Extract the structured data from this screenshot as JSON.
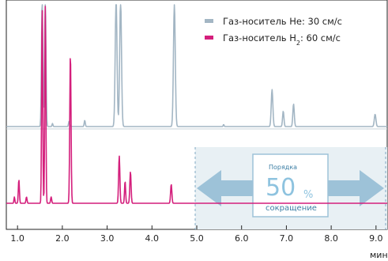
{
  "chart_data": {
    "type": "line",
    "xlabel": "мин",
    "xlim": [
      0.75,
      9.25
    ],
    "x_ticks": [
      {
        "value": 1.0,
        "label": "1.0"
      },
      {
        "value": 2.0,
        "label": "2.0"
      },
      {
        "value": 3.0,
        "label": "3.0"
      },
      {
        "value": 4.0,
        "label": "4.0"
      },
      {
        "value": 5.0,
        "label": "5.0"
      },
      {
        "value": 6.0,
        "label": "6.0"
      },
      {
        "value": 7.0,
        "label": "7.0"
      },
      {
        "value": 8.0,
        "label": "8.0"
      },
      {
        "value": 9.0,
        "label": "9.0"
      }
    ],
    "grid": false,
    "legend_position": "top-right",
    "series": [
      {
        "name": "Газ-носитель He: 30 см/с",
        "legend_prefix": "Газ-носитель H",
        "legend_sub": "",
        "legend_suffix": "e: 30 см/с",
        "color": "#a3b6c4",
        "baseline": 0,
        "peaks": [
          {
            "t": 1.55,
            "h": 125,
            "w": 0.015
          },
          {
            "t": 1.62,
            "h": 125,
            "w": 0.015
          },
          {
            "t": 1.78,
            "h": 3,
            "w": 0.01
          },
          {
            "t": 2.15,
            "h": 5,
            "w": 0.012
          },
          {
            "t": 2.5,
            "h": 6,
            "w": 0.012
          },
          {
            "t": 3.2,
            "h": 125,
            "w": 0.02
          },
          {
            "t": 3.3,
            "h": 125,
            "w": 0.02
          },
          {
            "t": 4.5,
            "h": 120,
            "w": 0.02
          },
          {
            "t": 5.6,
            "h": 2,
            "w": 0.01
          },
          {
            "t": 6.68,
            "h": 36,
            "w": 0.018
          },
          {
            "t": 6.93,
            "h": 15,
            "w": 0.015
          },
          {
            "t": 7.16,
            "h": 22,
            "w": 0.016
          },
          {
            "t": 8.98,
            "h": 12,
            "w": 0.018
          }
        ]
      },
      {
        "name": "Газ-носитель H2: 60 см/с",
        "legend_prefix": "Газ-носитель H",
        "legend_sub": "2",
        "legend_suffix": ": 60 см/с",
        "color": "#d41f7c",
        "baseline": 0,
        "peaks": [
          {
            "t": 0.93,
            "h": 8,
            "w": 0.01
          },
          {
            "t": 1.03,
            "h": 30,
            "w": 0.012
          },
          {
            "t": 1.2,
            "h": 8,
            "w": 0.012
          },
          {
            "t": 1.55,
            "h": 250,
            "w": 0.012
          },
          {
            "t": 1.62,
            "h": 250,
            "w": 0.012
          },
          {
            "t": 1.75,
            "h": 8,
            "w": 0.012
          },
          {
            "t": 2.18,
            "h": 190,
            "w": 0.014
          },
          {
            "t": 3.27,
            "h": 60,
            "w": 0.014
          },
          {
            "t": 3.4,
            "h": 28,
            "w": 0.012
          },
          {
            "t": 3.52,
            "h": 40,
            "w": 0.014
          },
          {
            "t": 4.43,
            "h": 24,
            "w": 0.014
          }
        ]
      }
    ],
    "annotation": {
      "top_text": "Порядка",
      "value": "50",
      "unit": "%",
      "bottom_text": "сокращение"
    }
  }
}
